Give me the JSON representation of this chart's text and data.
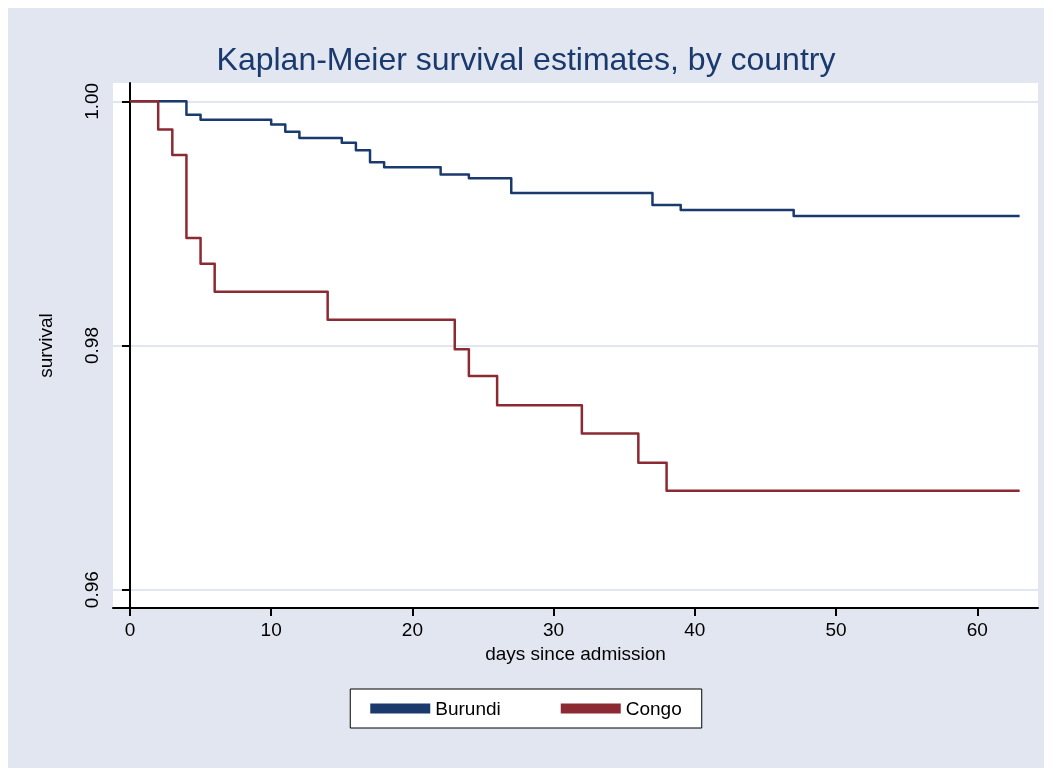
{
  "chart_data": {
    "type": "step",
    "title": "Kaplan-Meier survival estimates, by country",
    "xlabel": "days since admission",
    "ylabel": "survival",
    "xlim": [
      -1.2,
      64.3
    ],
    "xticks": [
      0,
      10,
      20,
      30,
      40,
      50,
      60
    ],
    "ylim": [
      0.9585,
      1.0015
    ],
    "yticks": [
      {
        "value": 0.96,
        "label": "0.96"
      },
      {
        "value": 0.98,
        "label": "0.98"
      },
      {
        "value": 1,
        "label": "1.00"
      }
    ],
    "grid": "y",
    "legend": "bottom",
    "series": [
      {
        "name": "Burundi",
        "color": "#1a3a6e",
        "x": [
          0,
          4,
          5,
          10,
          11,
          12,
          15,
          16,
          17,
          18,
          22,
          24,
          27,
          37,
          39,
          47,
          63
        ],
        "values": [
          1,
          0.9989,
          0.9985,
          0.9981,
          0.9975,
          0.997,
          0.9966,
          0.996,
          0.995,
          0.9946,
          0.994,
          0.9937,
          0.9925,
          0.9915,
          0.9911,
          0.9906,
          0.9906
        ]
      },
      {
        "name": "Congo",
        "color": "#8b2a32",
        "x": [
          0,
          2,
          3,
          4,
          5,
          6,
          14,
          23,
          24,
          26,
          32,
          36,
          38,
          63
        ],
        "values": [
          1,
          0.9977,
          0.9956,
          0.9888,
          0.9867,
          0.9844,
          0.9821,
          0.9797,
          0.9775,
          0.9751,
          0.9728,
          0.9704,
          0.9681,
          0.9681
        ]
      }
    ]
  }
}
